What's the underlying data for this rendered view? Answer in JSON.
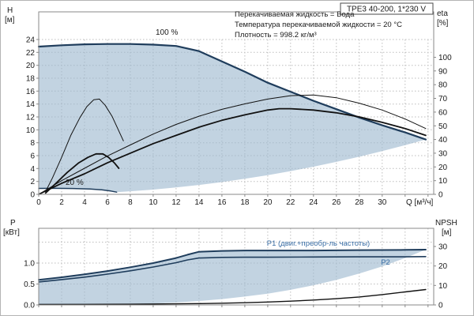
{
  "title_box": {
    "label": "TPE3 40-200, 1*230 V"
  },
  "info": {
    "line1": "Перекачиваемая жидкость = Вода",
    "line2": "Температура перекачиваемой жидкости = 20 °C",
    "line3": "Плотность = 998.2 кг/м³"
  },
  "axis_labels": {
    "h": "H",
    "h_unit": "[м]",
    "eta": "eta",
    "eta_unit": "[%]",
    "q": "Q [м³/ч]",
    "p": "P",
    "p_unit": "[кВт]",
    "npsh": "NPSH",
    "npsh_unit": "[м]"
  },
  "curve_labels": {
    "speed_100": "100 %",
    "speed_20": "20 %",
    "p1": "P1 (двиг.+преобр-ль частоты)",
    "p2": "P2"
  },
  "colors": {
    "envelope": "#9db8cf",
    "curve_navy": "#1f3d5c",
    "curve_black": "#111111",
    "label_blue": "#3a6ea5",
    "grid": "#bdbdbd",
    "frame": "#8a8a8a",
    "text": "#1a1a1a"
  },
  "chart_data": [
    {
      "type": "line",
      "name": "qh-eta-chart",
      "x": {
        "label": "Q [м³/ч]",
        "min": 0,
        "max": 34.5,
        "ticks": [
          0,
          2,
          4,
          6,
          8,
          10,
          12,
          14,
          16,
          18,
          20,
          22,
          24,
          26,
          28,
          30,
          32,
          34
        ],
        "labeled": [
          0,
          2,
          4,
          6,
          8,
          10,
          12,
          14,
          16,
          18,
          20,
          22,
          24,
          26,
          28,
          30
        ]
      },
      "y_left": {
        "label": "H [м]",
        "min": 0,
        "max": 28.3,
        "ticks": [
          0,
          2,
          4,
          6,
          8,
          10,
          12,
          14,
          16,
          18,
          20,
          22,
          24
        ],
        "grid": [
          2,
          4,
          6,
          8,
          10,
          12,
          14,
          16,
          18,
          20,
          22,
          24
        ]
      },
      "y_right": {
        "label": "eta [%]",
        "min": 0,
        "max": 100,
        "ticks": [
          0,
          10,
          20,
          30,
          40,
          50,
          60,
          70,
          80,
          90,
          100
        ]
      },
      "series": [
        {
          "name": "operating-envelope",
          "axis": "left",
          "fill": true,
          "color": "envelope",
          "opacity": 0.62,
          "points": [
            [
              0,
              22.9
            ],
            [
              2,
              23.1
            ],
            [
              4,
              23.25
            ],
            [
              6,
              23.3
            ],
            [
              8,
              23.3
            ],
            [
              10,
              23.2
            ],
            [
              12,
              23.0
            ],
            [
              14,
              22.2
            ],
            [
              16,
              20.6
            ],
            [
              18,
              19.0
            ],
            [
              20,
              17.3
            ],
            [
              22,
              15.9
            ],
            [
              24,
              14.5
            ],
            [
              26,
              13.2
            ],
            [
              28,
              11.9
            ],
            [
              30,
              10.7
            ],
            [
              32,
              9.6
            ],
            [
              33.8,
              8.5
            ],
            [
              32,
              7.62
            ],
            [
              30,
              6.7
            ],
            [
              28,
              5.83
            ],
            [
              26,
              5.03
            ],
            [
              24,
              4.29
            ],
            [
              22,
              3.6
            ],
            [
              20,
              2.98
            ],
            [
              18,
              2.41
            ],
            [
              16,
              1.9
            ],
            [
              14,
              1.46
            ],
            [
              12,
              1.07
            ],
            [
              10,
              0.74
            ],
            [
              8,
              0.48
            ],
            [
              6.8,
              0.34
            ],
            [
              6.3,
              0.52
            ],
            [
              5.5,
              0.7
            ],
            [
              4.5,
              0.82
            ],
            [
              3,
              0.9
            ],
            [
              1.5,
              0.93
            ],
            [
              0,
              0.92
            ]
          ]
        },
        {
          "name": "qh-curve-100pct",
          "label": "100 %",
          "axis": "left",
          "color": "curve_navy",
          "width": 2.2,
          "points": [
            [
              0,
              22.9
            ],
            [
              2,
              23.1
            ],
            [
              4,
              23.25
            ],
            [
              6,
              23.3
            ],
            [
              8,
              23.3
            ],
            [
              10,
              23.2
            ],
            [
              12,
              23.0
            ],
            [
              14,
              22.2
            ],
            [
              16,
              20.6
            ],
            [
              18,
              19.0
            ],
            [
              20,
              17.3
            ],
            [
              22,
              15.9
            ],
            [
              24,
              14.5
            ],
            [
              26,
              13.2
            ],
            [
              28,
              11.9
            ],
            [
              30,
              10.7
            ],
            [
              32,
              9.6
            ],
            [
              33.8,
              8.5
            ]
          ]
        },
        {
          "name": "qh-curve-20pct",
          "label": "20 %",
          "axis": "left",
          "color": "curve_navy",
          "width": 1.5,
          "points": [
            [
              0,
              0.92
            ],
            [
              1.5,
              0.93
            ],
            [
              3,
              0.9
            ],
            [
              4.5,
              0.82
            ],
            [
              5.5,
              0.7
            ],
            [
              6.3,
              0.52
            ],
            [
              6.8,
              0.34
            ]
          ]
        },
        {
          "name": "eta-curve-pump-100pct",
          "axis": "right",
          "color": "curve_black",
          "width": 1,
          "points": [
            [
              0,
              0
            ],
            [
              2,
              10
            ],
            [
              4,
              19
            ],
            [
              6,
              28
            ],
            [
              8,
              36
            ],
            [
              10,
              44
            ],
            [
              12,
              51
            ],
            [
              14,
              57
            ],
            [
              16,
              62
            ],
            [
              18,
              66
            ],
            [
              20,
              69.5
            ],
            [
              22,
              72
            ],
            [
              24,
              72.5
            ],
            [
              26,
              70.5
            ],
            [
              28,
              66.5
            ],
            [
              30,
              61.5
            ],
            [
              32,
              55
            ],
            [
              33.8,
              48
            ]
          ]
        },
        {
          "name": "eta-curve-pump-motor-100pct",
          "axis": "right",
          "color": "curve_black",
          "width": 1.8,
          "points": [
            [
              0,
              0
            ],
            [
              2,
              8
            ],
            [
              4,
              15
            ],
            [
              6,
              23
            ],
            [
              8,
              30
            ],
            [
              10,
              37
            ],
            [
              12,
              43
            ],
            [
              14,
              49
            ],
            [
              16,
              54
            ],
            [
              18,
              58
            ],
            [
              20,
              61.5
            ],
            [
              21,
              62.5
            ],
            [
              22,
              62.5
            ],
            [
              24,
              61.5
            ],
            [
              26,
              59.5
            ],
            [
              28,
              56.5
            ],
            [
              30,
              52.5
            ],
            [
              32,
              48
            ],
            [
              33.8,
              43
            ]
          ]
        },
        {
          "name": "eta-curve-pump-duty",
          "axis": "right",
          "color": "curve_black",
          "width": 1,
          "points": [
            [
              0.6,
              2
            ],
            [
              1.2,
              12
            ],
            [
              2,
              27
            ],
            [
              2.8,
              43
            ],
            [
              3.6,
              56
            ],
            [
              4.2,
              64
            ],
            [
              4.8,
              69
            ],
            [
              5.3,
              69.5
            ],
            [
              5.8,
              65
            ],
            [
              6.4,
              57
            ],
            [
              6.9,
              48
            ],
            [
              7.4,
              39
            ]
          ]
        },
        {
          "name": "eta-curve-pump-motor-duty",
          "axis": "right",
          "color": "curve_black",
          "width": 1.8,
          "points": [
            [
              0.6,
              1
            ],
            [
              1.5,
              8
            ],
            [
              2.5,
              16
            ],
            [
              3.5,
              23
            ],
            [
              4.3,
              27
            ],
            [
              5,
              29.5
            ],
            [
              5.6,
              29.5
            ],
            [
              6.1,
              27
            ],
            [
              6.6,
              23
            ],
            [
              7,
              19
            ]
          ]
        }
      ]
    },
    {
      "type": "line",
      "name": "power-npsh-chart",
      "x": {
        "label": "",
        "min": 0,
        "max": 34.5,
        "ticks": [
          0,
          2,
          4,
          6,
          8,
          10,
          12,
          14,
          16,
          18,
          20,
          22,
          24,
          26,
          28,
          30,
          32,
          34
        ],
        "labeled": []
      },
      "y_left": {
        "label": "P [кВт]",
        "min": 0,
        "max": 1.83,
        "ticks": [
          0,
          0.5,
          1
        ],
        "labels": [
          "0.0",
          "0.5",
          "1.0"
        ],
        "grid": [
          0.5,
          1,
          1.5
        ]
      },
      "y_right": {
        "label": "NPSH [м]",
        "min": 0,
        "max": 39,
        "ticks": [
          0,
          10,
          20,
          30
        ]
      },
      "series": [
        {
          "name": "power-envelope",
          "axis": "left",
          "fill": true,
          "color": "envelope",
          "opacity": 0.62,
          "points": [
            [
              0,
              0.6
            ],
            [
              2,
              0.66
            ],
            [
              4,
              0.73
            ],
            [
              6,
              0.81
            ],
            [
              8,
              0.9
            ],
            [
              10,
              1.0
            ],
            [
              12,
              1.12
            ],
            [
              13,
              1.2
            ],
            [
              14,
              1.27
            ],
            [
              16,
              1.29
            ],
            [
              18,
              1.3
            ],
            [
              20,
              1.3
            ],
            [
              24,
              1.3
            ],
            [
              28,
              1.31
            ],
            [
              32,
              1.315
            ],
            [
              33.8,
              1.32
            ],
            [
              32,
              1.12
            ],
            [
              30,
              0.92
            ],
            [
              28,
              0.75
            ],
            [
              26,
              0.6
            ],
            [
              24,
              0.47
            ],
            [
              22,
              0.36
            ],
            [
              20,
              0.27
            ],
            [
              18,
              0.2
            ],
            [
              16,
              0.14
            ],
            [
              14,
              0.094
            ],
            [
              12,
              0.059
            ],
            [
              10,
              0.034
            ],
            [
              8,
              0.018
            ],
            [
              6.8,
              0.011
            ],
            [
              4,
              0.01
            ],
            [
              2,
              0.01
            ],
            [
              0,
              0.01
            ]
          ]
        },
        {
          "name": "p1-curve",
          "label": "P1 (двиг.+преобр-ль частоты)",
          "axis": "left",
          "color": "curve_navy",
          "width": 2,
          "points": [
            [
              0,
              0.6
            ],
            [
              2,
              0.66
            ],
            [
              4,
              0.73
            ],
            [
              6,
              0.81
            ],
            [
              8,
              0.9
            ],
            [
              10,
              1.0
            ],
            [
              12,
              1.12
            ],
            [
              13,
              1.2
            ],
            [
              14,
              1.27
            ],
            [
              16,
              1.29
            ],
            [
              18,
              1.3
            ],
            [
              20,
              1.3
            ],
            [
              24,
              1.3
            ],
            [
              28,
              1.31
            ],
            [
              32,
              1.315
            ],
            [
              33.8,
              1.32
            ]
          ]
        },
        {
          "name": "p2-curve",
          "label": "P2",
          "axis": "left",
          "color": "curve_navy",
          "width": 1.6,
          "points": [
            [
              0,
              0.55
            ],
            [
              2,
              0.605
            ],
            [
              4,
              0.665
            ],
            [
              6,
              0.735
            ],
            [
              8,
              0.815
            ],
            [
              10,
              0.905
            ],
            [
              12,
              1.01
            ],
            [
              13,
              1.075
            ],
            [
              14,
              1.12
            ],
            [
              16,
              1.135
            ],
            [
              18,
              1.14
            ],
            [
              20,
              1.14
            ],
            [
              24,
              1.145
            ],
            [
              28,
              1.15
            ],
            [
              32,
              1.15
            ],
            [
              33.8,
              1.155
            ]
          ]
        },
        {
          "name": "p-curve-20pct",
          "axis": "left",
          "color": "curve_navy",
          "width": 1.2,
          "points": [
            [
              0,
              0.012
            ],
            [
              2,
              0.013
            ],
            [
              4,
              0.012
            ],
            [
              5.5,
              0.011
            ],
            [
              6.8,
              0.01
            ]
          ]
        },
        {
          "name": "npsh-curve",
          "axis": "right",
          "color": "curve_black",
          "width": 1.4,
          "points": [
            [
              0,
              0.22
            ],
            [
              4,
              0.28
            ],
            [
              8,
              0.38
            ],
            [
              12,
              0.55
            ],
            [
              14,
              0.7
            ],
            [
              16,
              0.9
            ],
            [
              18,
              1.15
            ],
            [
              20,
              1.5
            ],
            [
              22,
              1.95
            ],
            [
              24,
              2.5
            ],
            [
              26,
              3.2
            ],
            [
              28,
              4.1
            ],
            [
              30,
              5.3
            ],
            [
              32,
              6.7
            ],
            [
              33.8,
              7.9
            ]
          ]
        }
      ]
    }
  ]
}
